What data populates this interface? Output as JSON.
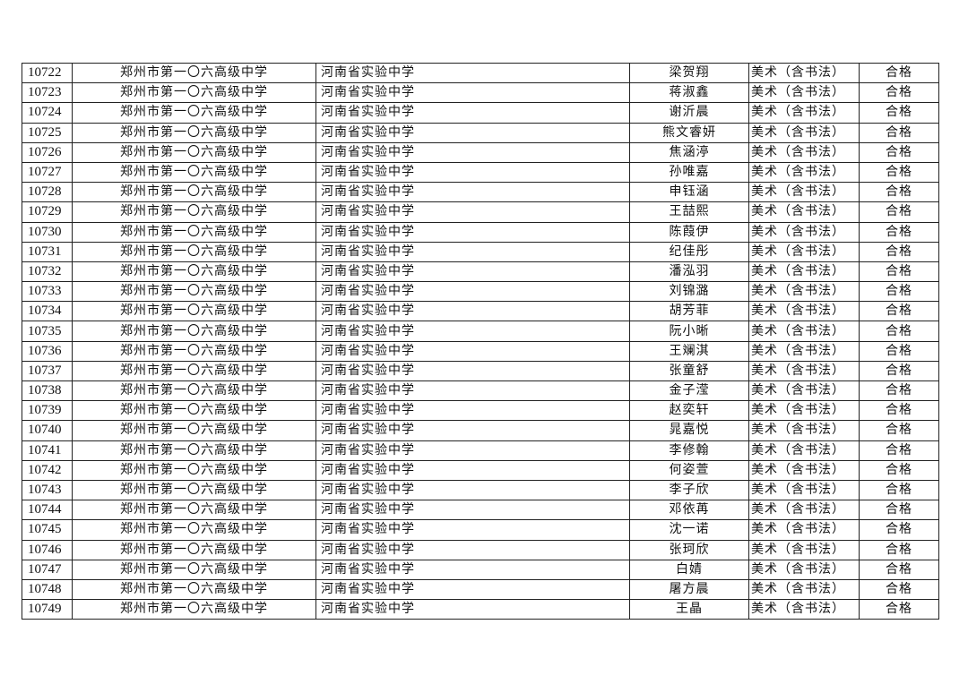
{
  "rows": [
    {
      "id": "10722",
      "school": "郑州市第一〇六高级中学",
      "school2": "河南省实验中学",
      "name": "梁贺翔",
      "subject": "美术（含书法）",
      "result": "合格"
    },
    {
      "id": "10723",
      "school": "郑州市第一〇六高级中学",
      "school2": "河南省实验中学",
      "name": "蒋淑鑫",
      "subject": "美术（含书法）",
      "result": "合格"
    },
    {
      "id": "10724",
      "school": "郑州市第一〇六高级中学",
      "school2": "河南省实验中学",
      "name": "谢沂晨",
      "subject": "美术（含书法）",
      "result": "合格"
    },
    {
      "id": "10725",
      "school": "郑州市第一〇六高级中学",
      "school2": "河南省实验中学",
      "name": "熊文睿妍",
      "subject": "美术（含书法）",
      "result": "合格"
    },
    {
      "id": "10726",
      "school": "郑州市第一〇六高级中学",
      "school2": "河南省实验中学",
      "name": "焦涵渟",
      "subject": "美术（含书法）",
      "result": "合格"
    },
    {
      "id": "10727",
      "school": "郑州市第一〇六高级中学",
      "school2": "河南省实验中学",
      "name": "孙唯嘉",
      "subject": "美术（含书法）",
      "result": "合格"
    },
    {
      "id": "10728",
      "school": "郑州市第一〇六高级中学",
      "school2": "河南省实验中学",
      "name": "申钰涵",
      "subject": "美术（含书法）",
      "result": "合格"
    },
    {
      "id": "10729",
      "school": "郑州市第一〇六高级中学",
      "school2": "河南省实验中学",
      "name": "王喆熙",
      "subject": "美术（含书法）",
      "result": "合格"
    },
    {
      "id": "10730",
      "school": "郑州市第一〇六高级中学",
      "school2": "河南省实验中学",
      "name": "陈葭伊",
      "subject": "美术（含书法）",
      "result": "合格"
    },
    {
      "id": "10731",
      "school": "郑州市第一〇六高级中学",
      "school2": "河南省实验中学",
      "name": "纪佳彤",
      "subject": "美术（含书法）",
      "result": "合格"
    },
    {
      "id": "10732",
      "school": "郑州市第一〇六高级中学",
      "school2": "河南省实验中学",
      "name": "潘泓羽",
      "subject": "美术（含书法）",
      "result": "合格"
    },
    {
      "id": "10733",
      "school": "郑州市第一〇六高级中学",
      "school2": "河南省实验中学",
      "name": "刘锦潞",
      "subject": "美术（含书法）",
      "result": "合格"
    },
    {
      "id": "10734",
      "school": "郑州市第一〇六高级中学",
      "school2": "河南省实验中学",
      "name": "胡芳菲",
      "subject": "美术（含书法）",
      "result": "合格"
    },
    {
      "id": "10735",
      "school": "郑州市第一〇六高级中学",
      "school2": "河南省实验中学",
      "name": "阮小晰",
      "subject": "美术（含书法）",
      "result": "合格"
    },
    {
      "id": "10736",
      "school": "郑州市第一〇六高级中学",
      "school2": "河南省实验中学",
      "name": "王斓淇",
      "subject": "美术（含书法）",
      "result": "合格"
    },
    {
      "id": "10737",
      "school": "郑州市第一〇六高级中学",
      "school2": "河南省实验中学",
      "name": "张童舒",
      "subject": "美术（含书法）",
      "result": "合格"
    },
    {
      "id": "10738",
      "school": "郑州市第一〇六高级中学",
      "school2": "河南省实验中学",
      "name": "金子滢",
      "subject": "美术（含书法）",
      "result": "合格"
    },
    {
      "id": "10739",
      "school": "郑州市第一〇六高级中学",
      "school2": "河南省实验中学",
      "name": "赵奕轩",
      "subject": "美术（含书法）",
      "result": "合格"
    },
    {
      "id": "10740",
      "school": "郑州市第一〇六高级中学",
      "school2": "河南省实验中学",
      "name": "晁嘉悦",
      "subject": "美术（含书法）",
      "result": "合格"
    },
    {
      "id": "10741",
      "school": "郑州市第一〇六高级中学",
      "school2": "河南省实验中学",
      "name": "李修翰",
      "subject": "美术（含书法）",
      "result": "合格"
    },
    {
      "id": "10742",
      "school": "郑州市第一〇六高级中学",
      "school2": "河南省实验中学",
      "name": "何姿萱",
      "subject": "美术（含书法）",
      "result": "合格"
    },
    {
      "id": "10743",
      "school": "郑州市第一〇六高级中学",
      "school2": "河南省实验中学",
      "name": "李子欣",
      "subject": "美术（含书法）",
      "result": "合格"
    },
    {
      "id": "10744",
      "school": "郑州市第一〇六高级中学",
      "school2": "河南省实验中学",
      "name": "邓依苒",
      "subject": "美术（含书法）",
      "result": "合格"
    },
    {
      "id": "10745",
      "school": "郑州市第一〇六高级中学",
      "school2": "河南省实验中学",
      "name": "沈一诺",
      "subject": "美术（含书法）",
      "result": "合格"
    },
    {
      "id": "10746",
      "school": "郑州市第一〇六高级中学",
      "school2": "河南省实验中学",
      "name": "张珂欣",
      "subject": "美术（含书法）",
      "result": "合格"
    },
    {
      "id": "10747",
      "school": "郑州市第一〇六高级中学",
      "school2": "河南省实验中学",
      "name": "白婧",
      "subject": "美术（含书法）",
      "result": "合格"
    },
    {
      "id": "10748",
      "school": "郑州市第一〇六高级中学",
      "school2": "河南省实验中学",
      "name": "屠方晨",
      "subject": "美术（含书法）",
      "result": "合格"
    },
    {
      "id": "10749",
      "school": "郑州市第一〇六高级中学",
      "school2": "河南省实验中学",
      "name": "王晶",
      "subject": "美术（含书法）",
      "result": "合格"
    }
  ]
}
